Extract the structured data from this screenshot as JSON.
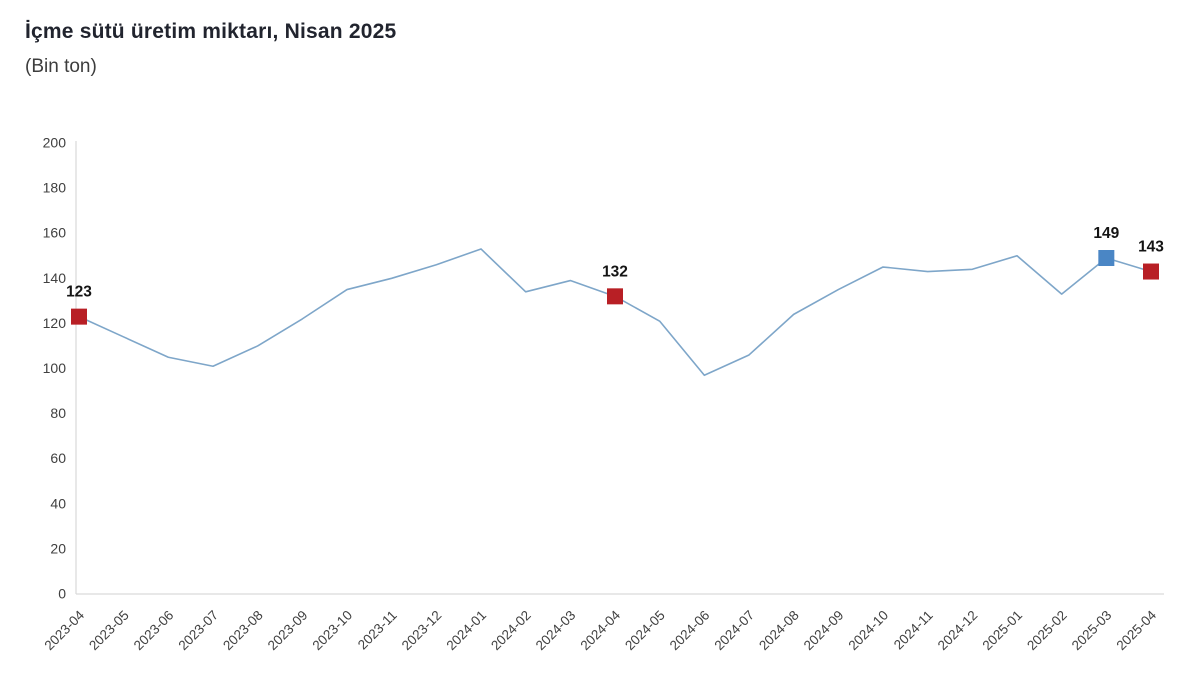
{
  "header": {
    "title": "İçme sütü üretim miktarı, Nisan 2025",
    "subtitle": "(Bin ton)"
  },
  "chart_data": {
    "type": "line",
    "title": "İçme sütü üretim miktarı, Nisan 2025",
    "subtitle": "(Bin ton)",
    "xlabel": "",
    "ylabel": "Bin ton",
    "ylim": [
      0,
      200
    ],
    "ytick_step": 20,
    "grid": false,
    "legend": "none",
    "x": [
      "2023-04",
      "2023-05",
      "2023-06",
      "2023-07",
      "2023-08",
      "2023-09",
      "2023-10",
      "2023-11",
      "2023-12",
      "2024-01",
      "2024-02",
      "2024-03",
      "2024-04",
      "2024-05",
      "2024-06",
      "2024-07",
      "2024-08",
      "2024-09",
      "2024-10",
      "2024-11",
      "2024-12",
      "2025-01",
      "2025-02",
      "2025-03",
      "2025-04"
    ],
    "series": [
      {
        "name": "İçme sütü üretim miktarı (Bin ton)",
        "values": [
          123,
          114,
          105,
          101,
          110,
          122,
          135,
          140,
          146,
          153,
          134,
          139,
          132,
          121,
          97,
          106,
          124,
          135,
          145,
          143,
          144,
          150,
          133,
          149,
          143
        ]
      }
    ],
    "highlighted_points": [
      {
        "month": "2023-04",
        "value": 123,
        "label": "123",
        "color": "#b81f25"
      },
      {
        "month": "2024-04",
        "value": 132,
        "label": "132",
        "color": "#b81f25"
      },
      {
        "month": "2025-03",
        "value": 149,
        "label": "149",
        "color": "#4a86c5"
      },
      {
        "month": "2025-04",
        "value": 143,
        "label": "143",
        "color": "#b81f25"
      }
    ],
    "colors": {
      "line": "#7ea6c9",
      "axis": "#d9d9d9",
      "tick_text": "#404040",
      "value_label_text": "#141414",
      "highlight_red": "#b81f25",
      "highlight_blue": "#4a86c5"
    }
  }
}
